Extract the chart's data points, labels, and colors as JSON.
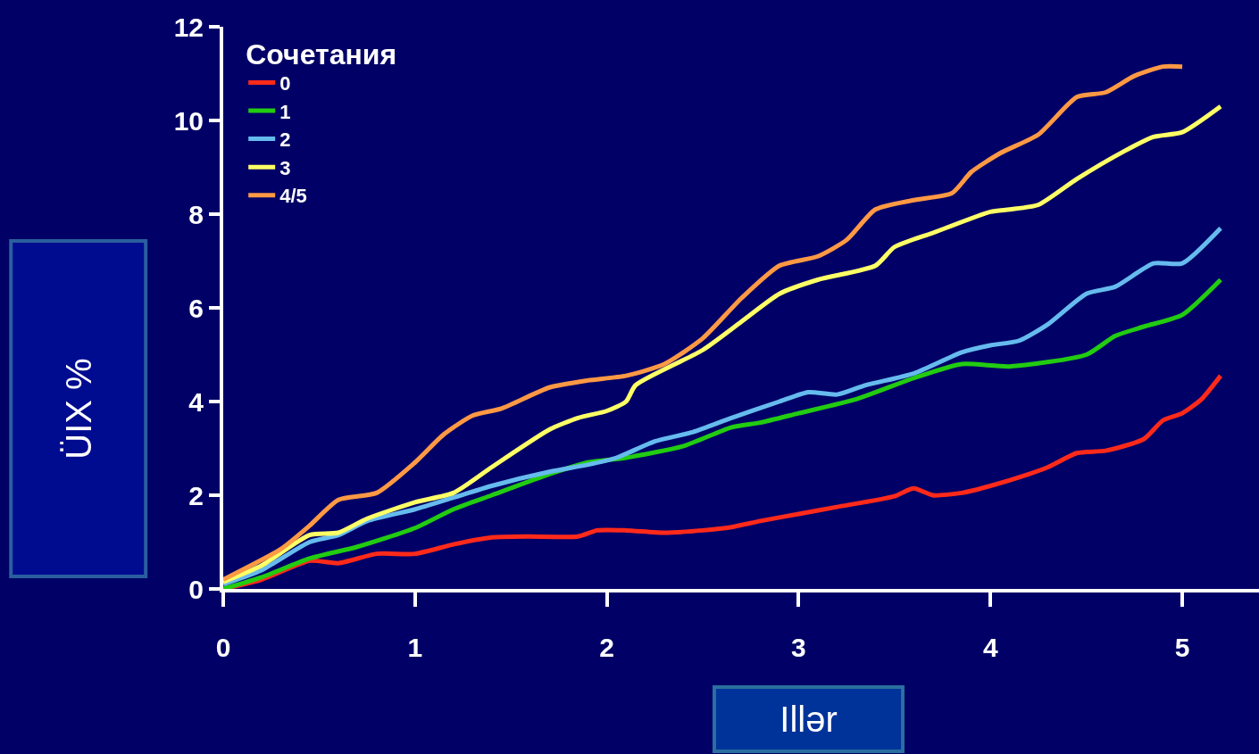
{
  "chart_data": {
    "type": "line",
    "xlabel": "Illər",
    "ylabel": "ÜIX %",
    "legend_title": "Сочетания",
    "legend": "top left",
    "grid": false,
    "marker": "none",
    "line_style": "solid",
    "xlim": [
      0,
      5.4
    ],
    "xticks": [
      0,
      1,
      2,
      3,
      4,
      5
    ],
    "ylim": [
      0,
      12
    ],
    "yticks": [
      0,
      2,
      4,
      6,
      8,
      10,
      12
    ],
    "series": [
      {
        "name": "0",
        "color": "#ff2a1a",
        "x": [
          0,
          0.2,
          0.45,
          0.6,
          0.8,
          1.0,
          1.2,
          1.4,
          1.6,
          1.85,
          1.95,
          2.1,
          2.3,
          2.5,
          2.65,
          2.8,
          3.0,
          3.2,
          3.5,
          3.6,
          3.7,
          3.85,
          4.0,
          4.2,
          4.3,
          4.45,
          4.6,
          4.8,
          4.9,
          5.0,
          5.1,
          5.2
        ],
        "values": [
          0,
          0.2,
          0.6,
          0.55,
          0.75,
          0.75,
          0.95,
          1.1,
          1.12,
          1.12,
          1.25,
          1.25,
          1.2,
          1.25,
          1.32,
          1.45,
          1.6,
          1.75,
          1.98,
          2.15,
          2.0,
          2.05,
          2.2,
          2.45,
          2.6,
          2.9,
          2.95,
          3.2,
          3.6,
          3.75,
          4.05,
          4.55
        ]
      },
      {
        "name": "1",
        "color": "#22cc11",
        "x": [
          0,
          0.2,
          0.45,
          0.7,
          1.0,
          1.2,
          1.4,
          1.7,
          1.9,
          2.1,
          2.4,
          2.65,
          2.8,
          3.0,
          3.3,
          3.6,
          3.85,
          4.1,
          4.5,
          4.65,
          4.8,
          5.0,
          5.2
        ],
        "values": [
          0,
          0.25,
          0.65,
          0.9,
          1.3,
          1.7,
          2.0,
          2.45,
          2.7,
          2.8,
          3.05,
          3.45,
          3.55,
          3.75,
          4.05,
          4.5,
          4.8,
          4.75,
          5.0,
          5.4,
          5.6,
          5.85,
          6.6
        ]
      },
      {
        "name": "2",
        "color": "#66bbee",
        "x": [
          0,
          0.2,
          0.45,
          0.6,
          0.75,
          1.0,
          1.2,
          1.4,
          1.7,
          1.9,
          2.05,
          2.25,
          2.45,
          2.65,
          2.9,
          3.05,
          3.2,
          3.35,
          3.6,
          3.85,
          4.0,
          4.15,
          4.3,
          4.5,
          4.65,
          4.85,
          5.0,
          5.2
        ],
        "values": [
          0.1,
          0.4,
          1.0,
          1.15,
          1.45,
          1.7,
          1.95,
          2.2,
          2.5,
          2.65,
          2.8,
          3.15,
          3.35,
          3.65,
          4.0,
          4.2,
          4.15,
          4.35,
          4.6,
          5.05,
          5.2,
          5.3,
          5.65,
          6.3,
          6.45,
          6.95,
          6.95,
          7.7
        ]
      },
      {
        "name": "3",
        "color": "#ffff66",
        "x": [
          0,
          0.2,
          0.45,
          0.6,
          0.75,
          1.0,
          1.2,
          1.4,
          1.7,
          1.85,
          2.0,
          2.1,
          2.15,
          2.5,
          2.7,
          2.9,
          3.1,
          3.4,
          3.5,
          3.7,
          4.0,
          4.1,
          4.25,
          4.45,
          4.7,
          4.85,
          5.0,
          5.2
        ],
        "values": [
          0.15,
          0.5,
          1.15,
          1.2,
          1.5,
          1.85,
          2.05,
          2.6,
          3.4,
          3.65,
          3.8,
          4.0,
          4.35,
          5.1,
          5.7,
          6.3,
          6.6,
          6.9,
          7.3,
          7.6,
          8.05,
          8.1,
          8.2,
          8.75,
          9.35,
          9.65,
          9.75,
          10.3
        ]
      },
      {
        "name": "4/5",
        "color": "#ff9944",
        "x": [
          0,
          0.3,
          0.45,
          0.6,
          0.8,
          1.0,
          1.15,
          1.3,
          1.45,
          1.7,
          1.9,
          2.1,
          2.3,
          2.5,
          2.7,
          2.9,
          3.1,
          3.25,
          3.4,
          3.6,
          3.8,
          3.9,
          4.05,
          4.25,
          4.45,
          4.6,
          4.75,
          4.9,
          5.0
        ],
        "values": [
          0.2,
          0.85,
          1.35,
          1.9,
          2.05,
          2.7,
          3.3,
          3.7,
          3.85,
          4.3,
          4.45,
          4.55,
          4.8,
          5.35,
          6.2,
          6.9,
          7.1,
          7.45,
          8.1,
          8.3,
          8.45,
          8.9,
          9.3,
          9.7,
          10.5,
          10.6,
          10.95,
          11.15,
          11.15
        ]
      }
    ]
  }
}
